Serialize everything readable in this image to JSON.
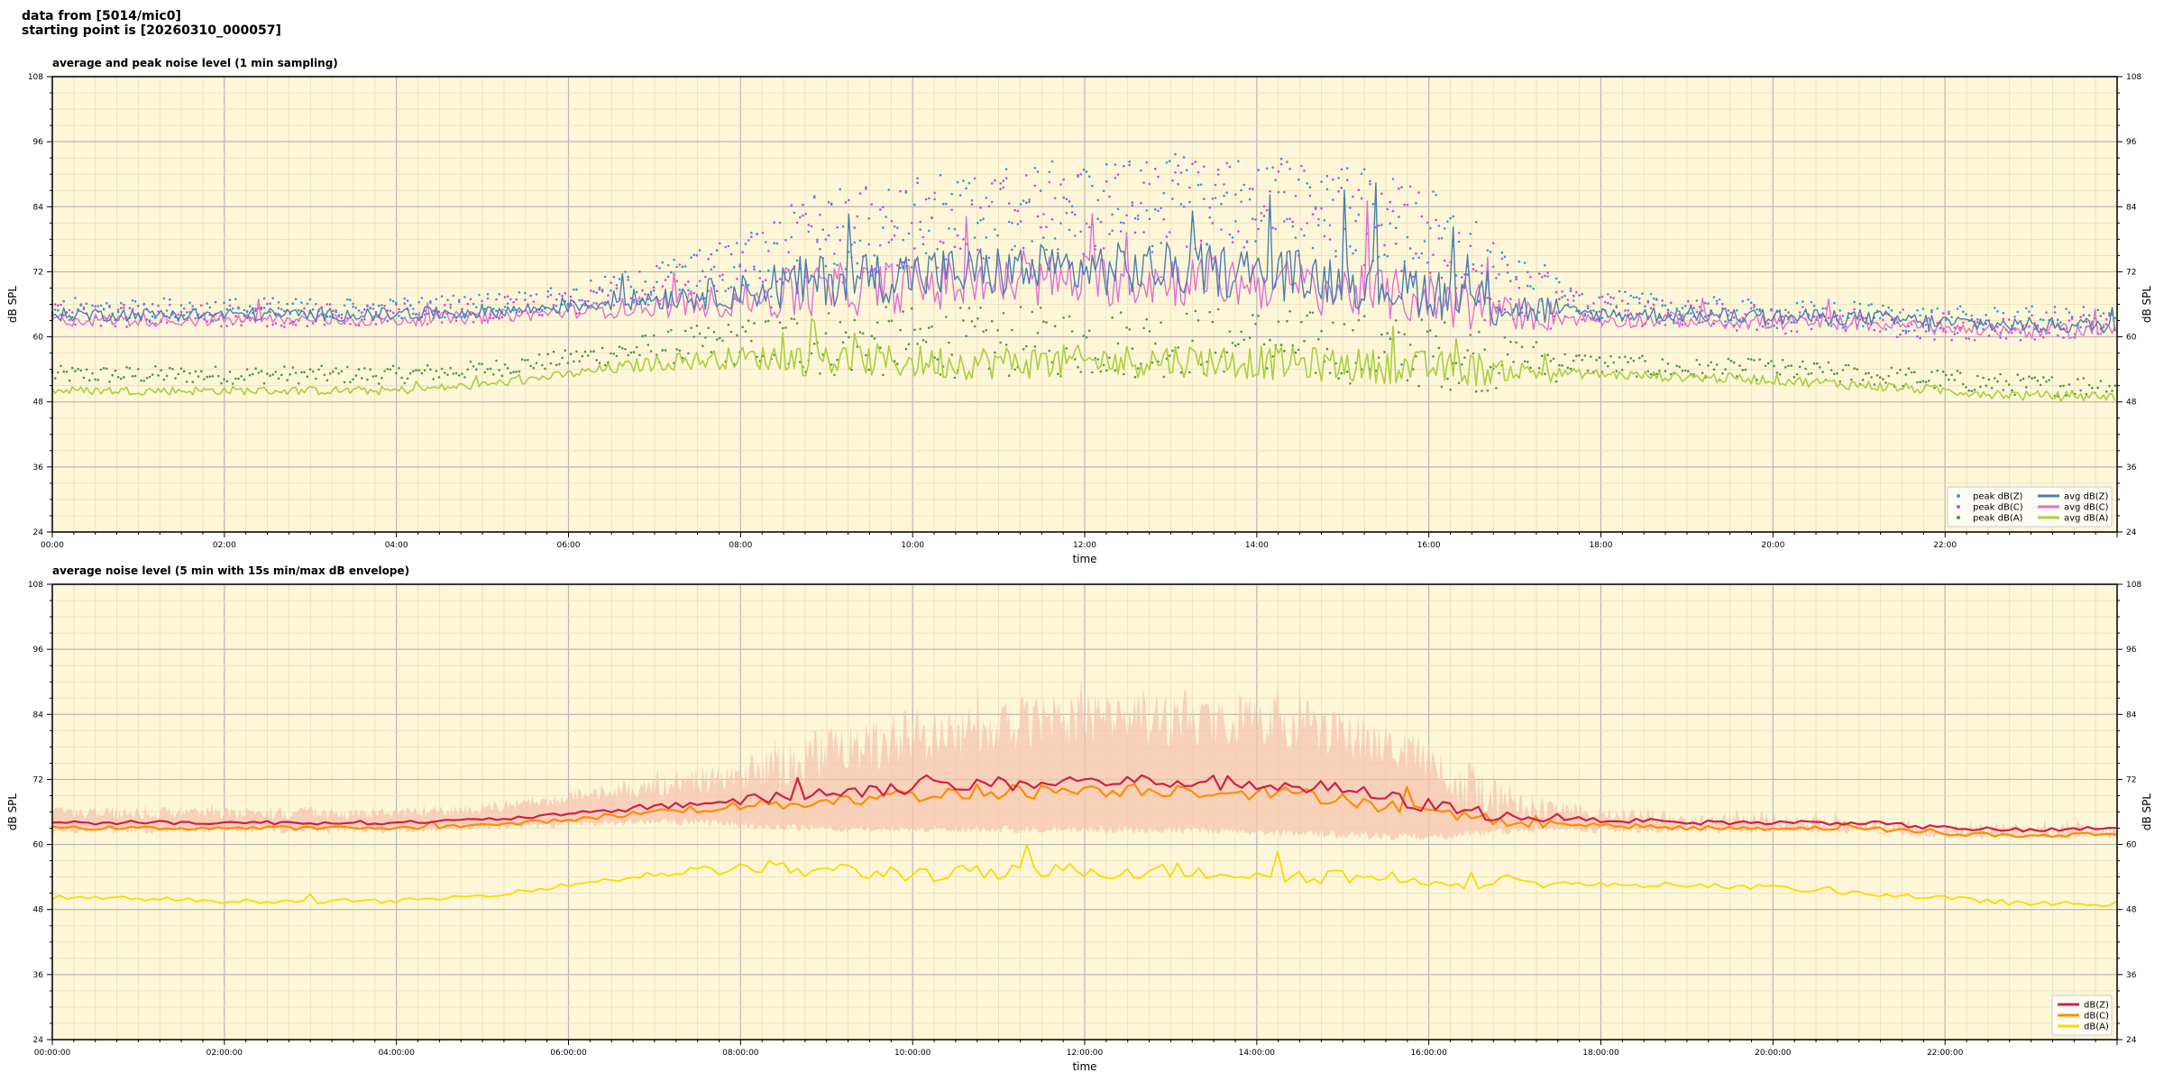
{
  "header": {
    "line1": "data from [5014/mic0]",
    "line2": "starting point is [20260310_000057]"
  },
  "colors": {
    "background": "#fdf6d8",
    "peak_z": "#2a9fd8",
    "peak_c": "#e040e0",
    "peak_a": "#4a9a4a",
    "avg_z": "#4a7fb0",
    "avg_c": "#e070d0",
    "avg_a": "#a8d040",
    "z": "#d0204a",
    "c": "#ff8c00",
    "a": "#ffd700",
    "envelope": "#f6c4b0"
  },
  "chart_data": [
    {
      "type": "line",
      "title": "average and peak noise level (1 min sampling)",
      "xlabel": "time",
      "ylabel": "dB SPL",
      "ylim": [
        24,
        108
      ],
      "yticks": [
        "24",
        "36",
        "48",
        "60",
        "72",
        "84",
        "96",
        "108"
      ],
      "xticks": [
        "00:00",
        "02:00",
        "04:00",
        "06:00",
        "08:00",
        "10:00",
        "12:00",
        "14:00",
        "16:00",
        "18:00",
        "20:00",
        "22:00"
      ],
      "xlim_hours": [
        0,
        24
      ],
      "grid": true,
      "legend_position": "bottom-right",
      "legend": [
        "peak dB(Z)",
        "peak dB(C)",
        "peak dB(A)",
        "avg dB(Z)",
        "avg dB(C)",
        "avg dB(A)"
      ],
      "series": [
        {
          "name": "avg dB(Z)",
          "x": [
            0,
            1,
            2,
            3,
            4,
            5,
            6,
            7,
            8,
            9,
            10,
            11,
            12,
            13,
            14,
            15,
            16,
            17,
            18,
            19,
            20,
            21,
            22,
            23,
            24
          ],
          "values": [
            64,
            64,
            64,
            64,
            64,
            64.5,
            65.5,
            67,
            68,
            70,
            71,
            71.5,
            72,
            72,
            71.5,
            70,
            68,
            65,
            64,
            64,
            63.5,
            63.5,
            62.5,
            62,
            62
          ]
        },
        {
          "name": "avg dB(C)",
          "x": [
            0,
            1,
            2,
            3,
            4,
            5,
            6,
            7,
            8,
            9,
            10,
            11,
            12,
            13,
            14,
            15,
            16,
            17,
            18,
            19,
            20,
            21,
            22,
            23,
            24
          ],
          "values": [
            63,
            63,
            63,
            63,
            63,
            63.5,
            64.5,
            65.5,
            66.5,
            68,
            69,
            69.5,
            70,
            70,
            69.5,
            68,
            66.5,
            64,
            63,
            63,
            62.5,
            62.5,
            61.5,
            61,
            61
          ]
        },
        {
          "name": "avg dB(A)",
          "x": [
            0,
            1,
            2,
            3,
            4,
            5,
            6,
            7,
            8,
            9,
            10,
            11,
            12,
            13,
            14,
            15,
            16,
            17,
            18,
            19,
            20,
            21,
            22,
            23,
            24
          ],
          "values": [
            50,
            50,
            50,
            50,
            50,
            51,
            53,
            55,
            56,
            55.5,
            55,
            55,
            55,
            55.5,
            55,
            54.5,
            54,
            53.5,
            53,
            52.5,
            52,
            51,
            50,
            49,
            49
          ]
        },
        {
          "name": "peak dB(Z)",
          "x": [
            0,
            1,
            2,
            3,
            4,
            5,
            6,
            7,
            8,
            9,
            10,
            11,
            12,
            13,
            14,
            15,
            16,
            17,
            18,
            19,
            20,
            21,
            22,
            23,
            24
          ],
          "values": [
            66,
            66,
            66,
            66,
            66,
            67,
            68,
            71,
            74,
            80,
            82,
            84,
            85,
            86,
            86,
            85,
            80,
            70,
            67,
            66,
            65,
            65,
            64,
            64,
            64
          ]
        },
        {
          "name": "peak dB(C)",
          "x": [
            0,
            1,
            2,
            3,
            4,
            5,
            6,
            7,
            8,
            9,
            10,
            11,
            12,
            13,
            14,
            15,
            16,
            17,
            18,
            19,
            20,
            21,
            22,
            23,
            24
          ],
          "values": [
            65,
            65,
            65,
            65,
            65,
            66,
            67,
            70,
            73,
            79,
            81,
            83,
            84,
            85,
            85,
            84,
            79,
            69,
            66,
            65,
            64,
            64,
            63,
            63,
            63
          ]
        },
        {
          "name": "peak dB(A)",
          "x": [
            0,
            1,
            2,
            3,
            4,
            5,
            6,
            7,
            8,
            9,
            10,
            11,
            12,
            13,
            14,
            15,
            16,
            17,
            18,
            19,
            20,
            21,
            22,
            23,
            24
          ],
          "values": [
            54,
            54,
            54,
            54,
            54,
            55,
            57,
            59,
            60,
            60,
            60,
            60,
            60,
            60,
            60,
            59,
            58,
            57,
            56,
            55,
            55,
            54,
            53,
            52,
            52
          ]
        }
      ]
    },
    {
      "type": "line",
      "title": "average noise level (5 min with 15s min/max dB envelope)",
      "xlabel": "time",
      "ylabel": "dB SPL",
      "ylim": [
        24,
        108
      ],
      "yticks": [
        "24",
        "36",
        "48",
        "60",
        "72",
        "84",
        "96",
        "108"
      ],
      "xticks": [
        "00:00:00",
        "02:00:00",
        "04:00:00",
        "06:00:00",
        "08:00:00",
        "10:00:00",
        "12:00:00",
        "14:00:00",
        "16:00:00",
        "18:00:00",
        "20:00:00",
        "22:00:00"
      ],
      "xlim_hours": [
        0,
        24
      ],
      "grid": true,
      "legend_position": "bottom-right",
      "legend": [
        "dB(Z)",
        "dB(C)",
        "dB(A)"
      ],
      "series": [
        {
          "name": "dB(Z)",
          "x": [
            0,
            1,
            2,
            3,
            4,
            5,
            6,
            7,
            8,
            9,
            10,
            11,
            12,
            13,
            14,
            15,
            16,
            17,
            18,
            19,
            20,
            21,
            22,
            23,
            24
          ],
          "values": [
            64,
            64,
            64,
            64,
            64,
            64.5,
            65.5,
            67,
            68,
            69.5,
            70.5,
            71,
            71.5,
            71.5,
            71,
            70,
            67,
            65,
            64.5,
            64,
            64,
            64,
            63,
            62.5,
            63
          ]
        },
        {
          "name": "dB(C)",
          "x": [
            0,
            1,
            2,
            3,
            4,
            5,
            6,
            7,
            8,
            9,
            10,
            11,
            12,
            13,
            14,
            15,
            16,
            17,
            18,
            19,
            20,
            21,
            22,
            23,
            24
          ],
          "values": [
            63,
            63,
            63,
            63,
            63,
            63.5,
            64.5,
            66,
            67,
            68,
            69,
            69.5,
            70,
            70,
            69.5,
            68.5,
            65.5,
            64,
            63.5,
            63,
            63,
            63,
            62,
            61.5,
            62
          ]
        },
        {
          "name": "dB(A)",
          "x": [
            0,
            1,
            2,
            3,
            4,
            5,
            6,
            7,
            8,
            9,
            10,
            11,
            12,
            13,
            14,
            15,
            16,
            17,
            18,
            19,
            20,
            21,
            22,
            23,
            24
          ],
          "values": [
            50,
            50,
            49.5,
            49.5,
            49.5,
            50.5,
            52.5,
            54.5,
            55.5,
            55,
            54.5,
            54.5,
            55,
            55,
            54.5,
            54,
            53.5,
            53,
            52.5,
            52.5,
            52,
            51,
            50,
            49,
            49
          ]
        },
        {
          "name": "envelope max",
          "x": [
            0,
            1,
            2,
            3,
            4,
            5,
            6,
            7,
            8,
            9,
            10,
            11,
            12,
            13,
            14,
            15,
            16,
            17,
            18,
            19,
            20,
            21,
            22,
            23,
            24
          ],
          "values": [
            67,
            67,
            67,
            67,
            67,
            68,
            70,
            73,
            76,
            82,
            85,
            87,
            88,
            88,
            88,
            86,
            80,
            70,
            67,
            66,
            66,
            65,
            64,
            64,
            64
          ]
        },
        {
          "name": "envelope min",
          "x": [
            0,
            1,
            2,
            3,
            4,
            5,
            6,
            7,
            8,
            9,
            10,
            11,
            12,
            13,
            14,
            15,
            16,
            17,
            18,
            19,
            20,
            21,
            22,
            23,
            24
          ],
          "values": [
            62,
            62,
            62,
            62,
            62,
            62.5,
            63,
            63.5,
            63,
            62,
            62,
            62,
            62,
            62,
            61.5,
            61,
            60.5,
            62,
            62,
            62,
            62,
            62,
            61,
            61,
            61
          ]
        }
      ]
    }
  ]
}
